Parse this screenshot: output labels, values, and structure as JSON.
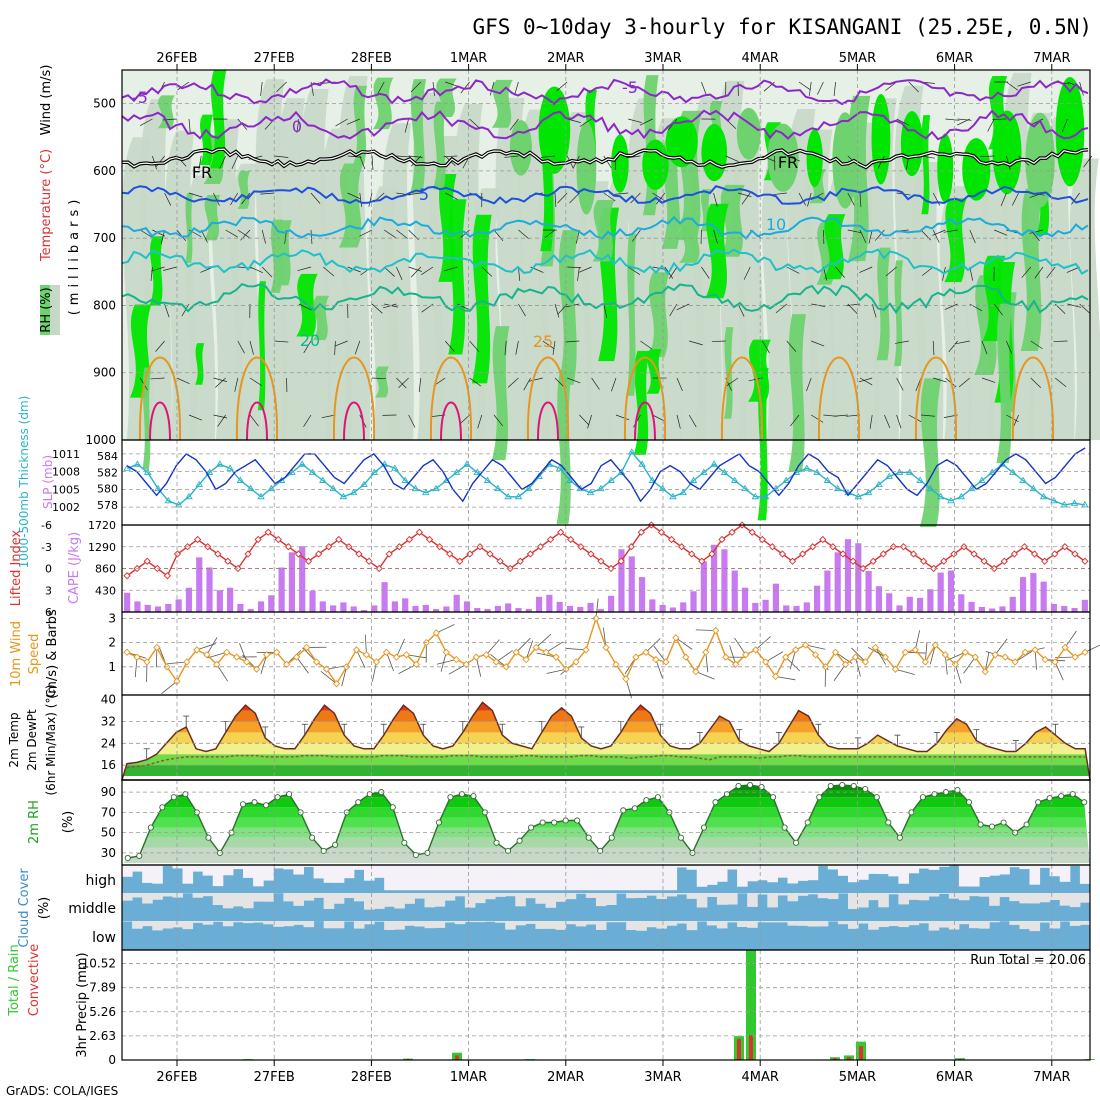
{
  "title": "GFS 0~10day 3-hourly for KISANGANI (25.25E, 0.5N)",
  "footer": "GrADS: COLA/IGES",
  "date_labels": [
    "26FEB",
    "27FEB",
    "28FEB",
    "1MAR",
    "2MAR",
    "3MAR",
    "4MAR",
    "5MAR",
    "6MAR",
    "7MAR"
  ],
  "colors": {
    "rh_light": "#e6f0e6",
    "rh_mid": "#c8d8c8",
    "rh_green": "#6ed26e",
    "rh_bright": "#00e600",
    "temp_purple": "#8c28c8",
    "temp_blue": "#1e50dc",
    "temp_cyan": "#1eaadc",
    "temp_teal": "#14b48c",
    "temp_orange": "#e6961e",
    "temp_red": "#dc1478",
    "slp": "#1432c8",
    "thickness": "#28b4c8",
    "lifted": "#dc3232",
    "cape": "#c87af0",
    "wind": "#e6961e",
    "cloud_blue": "#6aaed6",
    "precip_green": "#32c832",
    "precip_red": "#dc3232"
  },
  "panels": {
    "upper": {
      "ylabel_wind": "Wind (m/s)",
      "ylabel_temp": "Temperature (°C)",
      "ylabel_rh": "RH (%)",
      "ylabel_units": "(millibars)",
      "yticks": [
        "500",
        "600",
        "700",
        "800",
        "900",
        "1000"
      ],
      "contour_labels": [
        "-5",
        "0",
        "FR",
        "5",
        "10",
        "20",
        "25",
        "-5",
        "FR"
      ]
    },
    "slp": {
      "ylabel_thick": "1000-500mb Thickness (dm)",
      "ylabel_slp": "SLP (mb)",
      "left_ticks": [
        "584",
        "582",
        "580",
        "578"
      ],
      "right_ticks": [
        "1011",
        "1008",
        "1005",
        "1002"
      ]
    },
    "cape": {
      "ylabel_li": "Lifted Index",
      "ylabel_cape": "CAPE (J/kg)",
      "left_ticks": [
        "-6",
        "-3",
        "0",
        "3",
        "6"
      ],
      "right_ticks": [
        "1720",
        "1290",
        "860",
        "430"
      ]
    },
    "wind10": {
      "ylabel_a": "10m Wind",
      "ylabel_b": "Speed",
      "ylabel_c": "(m/s) & Barbs",
      "yticks": [
        "3",
        "2",
        "1"
      ]
    },
    "temp2m": {
      "ylabel_a": "2m Temp",
      "ylabel_b": "2m DewPt",
      "ylabel_c": "(6hr Min/Max) (°C)",
      "yticks": [
        "40",
        "32",
        "24",
        "16"
      ]
    },
    "rh2m": {
      "ylabel_a": "2m RH",
      "ylabel_b": "(%)",
      "yticks": [
        "90",
        "70",
        "50",
        "30"
      ]
    },
    "cloud": {
      "ylabel_a": "Cloud Cover",
      "ylabel_b": "(%)",
      "levels": [
        "high",
        "middle",
        "low"
      ]
    },
    "precip": {
      "ylabel_a": "Total / Rain",
      "ylabel_b": "Convective",
      "ylabel_c": "3hr Precip (mm)",
      "yticks": [
        "10.52",
        "7.89",
        "5.26",
        "2.63",
        "0"
      ],
      "run_total": "Run Total = 20.06"
    }
  },
  "chart_data": {
    "type": "meteogram",
    "title": "GFS 0~10day 3-hourly for KISANGANI (25.25E, 0.5N)",
    "x_dates": [
      "26FEB",
      "27FEB",
      "28FEB",
      "1MAR",
      "2MAR",
      "3MAR",
      "4MAR",
      "5MAR",
      "6MAR",
      "7MAR"
    ],
    "slp_mb": [
      1009,
      1008,
      1006,
      1004,
      1006,
      1009,
      1011,
      1010,
      1008,
      1005,
      1006,
      1008,
      1009,
      1010,
      1008,
      1006,
      1007,
      1009,
      1011,
      1011,
      1009,
      1007,
      1006,
      1008,
      1010,
      1011,
      1009,
      1006,
      1005,
      1007,
      1009,
      1010,
      1008,
      1005,
      1003,
      1006,
      1008,
      1010,
      1009,
      1007,
      1005,
      1006,
      1008,
      1010,
      1009,
      1007,
      1005,
      1006,
      1009,
      1010,
      1008,
      1006,
      1003,
      1005,
      1008,
      1009,
      1008,
      1006,
      1005,
      1007,
      1009,
      1010,
      1011,
      1009,
      1008,
      1006,
      1004,
      1006,
      1009,
      1011,
      1010,
      1008,
      1007,
      1004,
      1006,
      1008,
      1010,
      1009,
      1007,
      1005,
      1004,
      1006,
      1009,
      1010,
      1009,
      1007,
      1005,
      1006,
      1008,
      1010,
      1011,
      1010,
      1008,
      1006,
      1007,
      1009,
      1011,
      1012
    ],
    "thickness_dm": [
      582.5,
      583,
      582,
      580,
      578.5,
      578,
      579,
      580.5,
      582,
      583,
      582.5,
      581,
      580,
      579,
      580,
      581,
      582,
      583,
      582,
      581,
      580,
      579,
      579.5,
      580.5,
      582,
      583,
      582.5,
      581,
      580,
      579.5,
      580,
      581,
      582,
      583,
      582,
      581,
      580,
      579,
      579,
      580,
      581.5,
      583,
      582.5,
      581,
      580,
      579.5,
      580,
      581,
      582,
      584.5,
      583,
      581,
      580,
      579,
      579.5,
      581,
      582,
      583,
      582,
      581,
      580,
      579,
      579,
      580,
      581,
      582,
      582.5,
      582,
      581,
      580,
      579.5,
      579,
      579.5,
      580.5,
      581.5,
      582,
      582,
      581,
      580,
      579,
      578.5,
      579,
      580,
      581,
      582,
      583,
      582,
      581,
      580,
      579,
      578.5,
      578,
      578.2,
      578
    ],
    "lifted_index": [
      1,
      0,
      -1,
      0,
      1,
      -2,
      -3,
      -4,
      -3,
      -2,
      -1,
      0,
      -2,
      -4,
      -5,
      -4,
      -3,
      -2,
      -1,
      -2,
      -3,
      -4,
      -3,
      -2,
      -1,
      0,
      -2,
      -3,
      -4,
      -5,
      -4,
      -3,
      -2,
      -1,
      -2,
      -3,
      -2,
      -1,
      0,
      -1,
      -2,
      -3,
      -4,
      -5,
      -4,
      -3,
      -2,
      -1,
      0,
      -1,
      -3,
      -5,
      -6,
      -5,
      -4,
      -3,
      -2,
      -1,
      -2,
      -4,
      -5,
      -6,
      -5,
      -4,
      -3,
      -2,
      -1,
      -2,
      -3,
      -4,
      -3,
      -2,
      -1,
      0,
      -1,
      -2,
      -3,
      -3,
      -2,
      -1,
      0,
      -1,
      -2,
      -3,
      -2,
      -1,
      0,
      -1,
      -2,
      -3,
      -2,
      -1,
      -2,
      -3,
      -2,
      -1
    ],
    "cape_jkg": [
      380,
      210,
      140,
      110,
      160,
      250,
      480,
      1080,
      880,
      430,
      480,
      160,
      60,
      210,
      330,
      880,
      1180,
      1300,
      420,
      210,
      130,
      190,
      110,
      40,
      130,
      590,
      210,
      270,
      120,
      140,
      60,
      110,
      340,
      210,
      80,
      60,
      120,
      170,
      80,
      60,
      300,
      340,
      200,
      120,
      100,
      180,
      60,
      320,
      1240,
      1100,
      690,
      250,
      140,
      90,
      190,
      410,
      1000,
      1330,
      1240,
      820,
      480,
      180,
      240,
      560,
      130,
      120,
      190,
      520,
      820,
      1180,
      1440,
      1360,
      810,
      510,
      370,
      130,
      300,
      280,
      450,
      780,
      820,
      350,
      200,
      100,
      70,
      110,
      300,
      690,
      770,
      600,
      160,
      120,
      80,
      240
    ],
    "wind10m_ms": [
      1.6,
      1.4,
      1.2,
      1.8,
      1.0,
      0.4,
      1.2,
      1.7,
      1.5,
      1.1,
      1.6,
      1.4,
      1.2,
      0.9,
      1.5,
      1.6,
      1.1,
      1.4,
      1.8,
      1.2,
      0.9,
      0.3,
      1.0,
      1.7,
      1.5,
      1.2,
      1.6,
      1.4,
      1.5,
      1.1,
      2.0,
      2.4,
      1.6,
      1.3,
      1.1,
      1.4,
      1.5,
      1.2,
      1.0,
      1.6,
      1.3,
      1.8,
      1.6,
      1.4,
      0.9,
      1.2,
      1.7,
      3.0,
      1.8,
      1.1,
      0.5,
      1.4,
      1.6,
      1.3,
      1.2,
      2.2,
      1.4,
      0.8,
      1.6,
      2.5,
      1.4,
      1.1,
      1.5,
      1.7,
      1.2,
      0.6,
      1.4,
      1.7,
      1.9,
      1.5,
      1.0,
      1.6,
      1.1,
      1.4,
      1.2,
      1.8,
      1.4,
      0.9,
      1.6,
      1.7,
      1.2,
      1.9,
      1.5,
      1.1,
      1.6,
      1.4,
      0.8,
      1.5,
      1.4,
      1.2,
      1.6,
      1.7,
      1.3,
      1.2,
      1.8,
      1.4,
      1.6
    ],
    "temp2m_c": [
      16.5,
      17,
      18,
      20,
      24,
      28,
      30,
      22,
      21,
      22,
      28,
      34,
      38,
      35,
      26,
      23,
      22,
      22,
      27,
      33,
      38,
      35,
      27,
      23,
      22,
      22,
      27,
      33,
      38,
      35,
      27,
      23,
      22,
      23,
      28,
      34,
      39,
      36,
      27,
      24,
      23,
      22,
      28,
      34,
      37,
      34,
      26,
      23,
      22,
      23,
      28,
      34,
      38,
      35,
      27,
      23,
      22,
      22,
      24,
      29,
      34,
      32,
      25,
      23,
      22,
      21,
      24,
      30,
      36,
      34,
      27,
      23,
      22,
      22,
      22,
      24,
      27,
      25,
      23,
      22,
      21,
      21,
      24,
      29,
      33,
      31,
      25,
      23,
      22,
      21,
      21,
      24,
      28,
      30,
      27,
      24,
      22,
      22
    ],
    "dewpt2m_c": [
      15,
      15.5,
      16,
      17,
      18,
      18.5,
      19,
      19,
      19,
      19,
      19,
      19.5,
      19.5,
      19.5,
      19,
      19,
      19,
      19,
      19.5,
      19.5,
      19.5,
      19,
      19,
      19,
      19,
      19,
      19.5,
      19.5,
      19.5,
      19,
      19,
      19,
      19,
      19.5,
      19.5,
      19.5,
      19,
      19,
      19,
      19,
      19.5,
      19.5,
      19,
      19,
      19,
      19,
      19.5,
      19.5,
      19,
      19,
      19,
      18.5,
      19,
      19,
      19.5,
      19.5,
      19,
      19,
      18.5,
      18,
      19,
      19,
      19,
      19,
      18.5,
      19,
      19,
      19.5,
      19.5,
      19,
      19,
      19,
      19,
      19,
      19,
      19,
      19,
      19,
      19,
      19,
      19,
      19,
      19,
      19,
      19,
      19,
      19,
      19,
      19,
      19,
      19,
      19,
      19,
      19,
      19,
      19,
      19,
      19
    ],
    "rh2m_pct": [
      25,
      27,
      55,
      75,
      85,
      88,
      70,
      45,
      30,
      50,
      78,
      80,
      77,
      85,
      88,
      70,
      45,
      32,
      38,
      70,
      80,
      88,
      90,
      75,
      40,
      28,
      30,
      60,
      85,
      88,
      86,
      70,
      40,
      32,
      42,
      55,
      60,
      60,
      62,
      62,
      45,
      32,
      45,
      72,
      74,
      82,
      85,
      70,
      45,
      30,
      55,
      80,
      88,
      96,
      97,
      95,
      85,
      55,
      40,
      60,
      85,
      96,
      97,
      96,
      93,
      85,
      60,
      45,
      70,
      85,
      88,
      90,
      92,
      80,
      58,
      56,
      60,
      50,
      58,
      80,
      84,
      86,
      88,
      80
    ]
  }
}
